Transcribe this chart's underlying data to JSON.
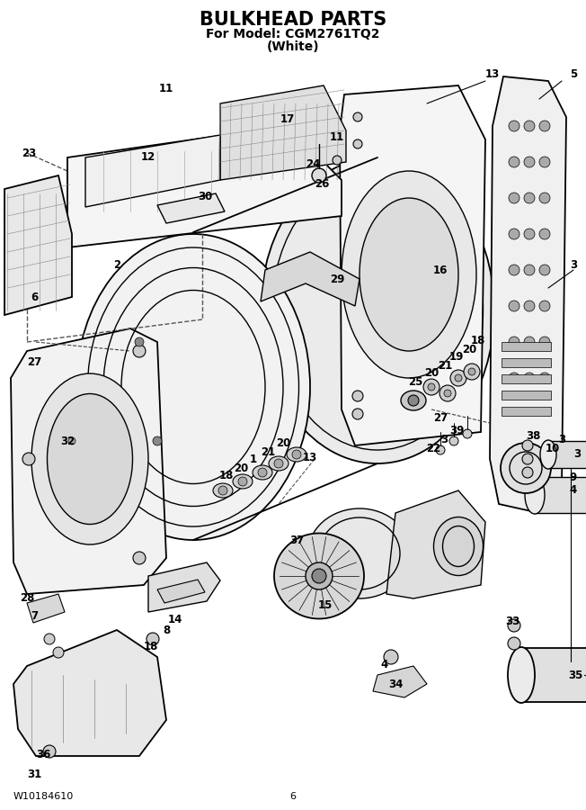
{
  "title_line1": "BULKHEAD PARTS",
  "title_line2": "For Model: CGM2761TQ2",
  "title_line3": "(White)",
  "footer_left": "W10184610",
  "footer_center": "6",
  "bg_color": "#ffffff",
  "fg_color": "#000000",
  "title_fontsize": 15,
  "subtitle_fontsize": 10,
  "label_fontsize": 8.5,
  "footer_fontsize": 8
}
